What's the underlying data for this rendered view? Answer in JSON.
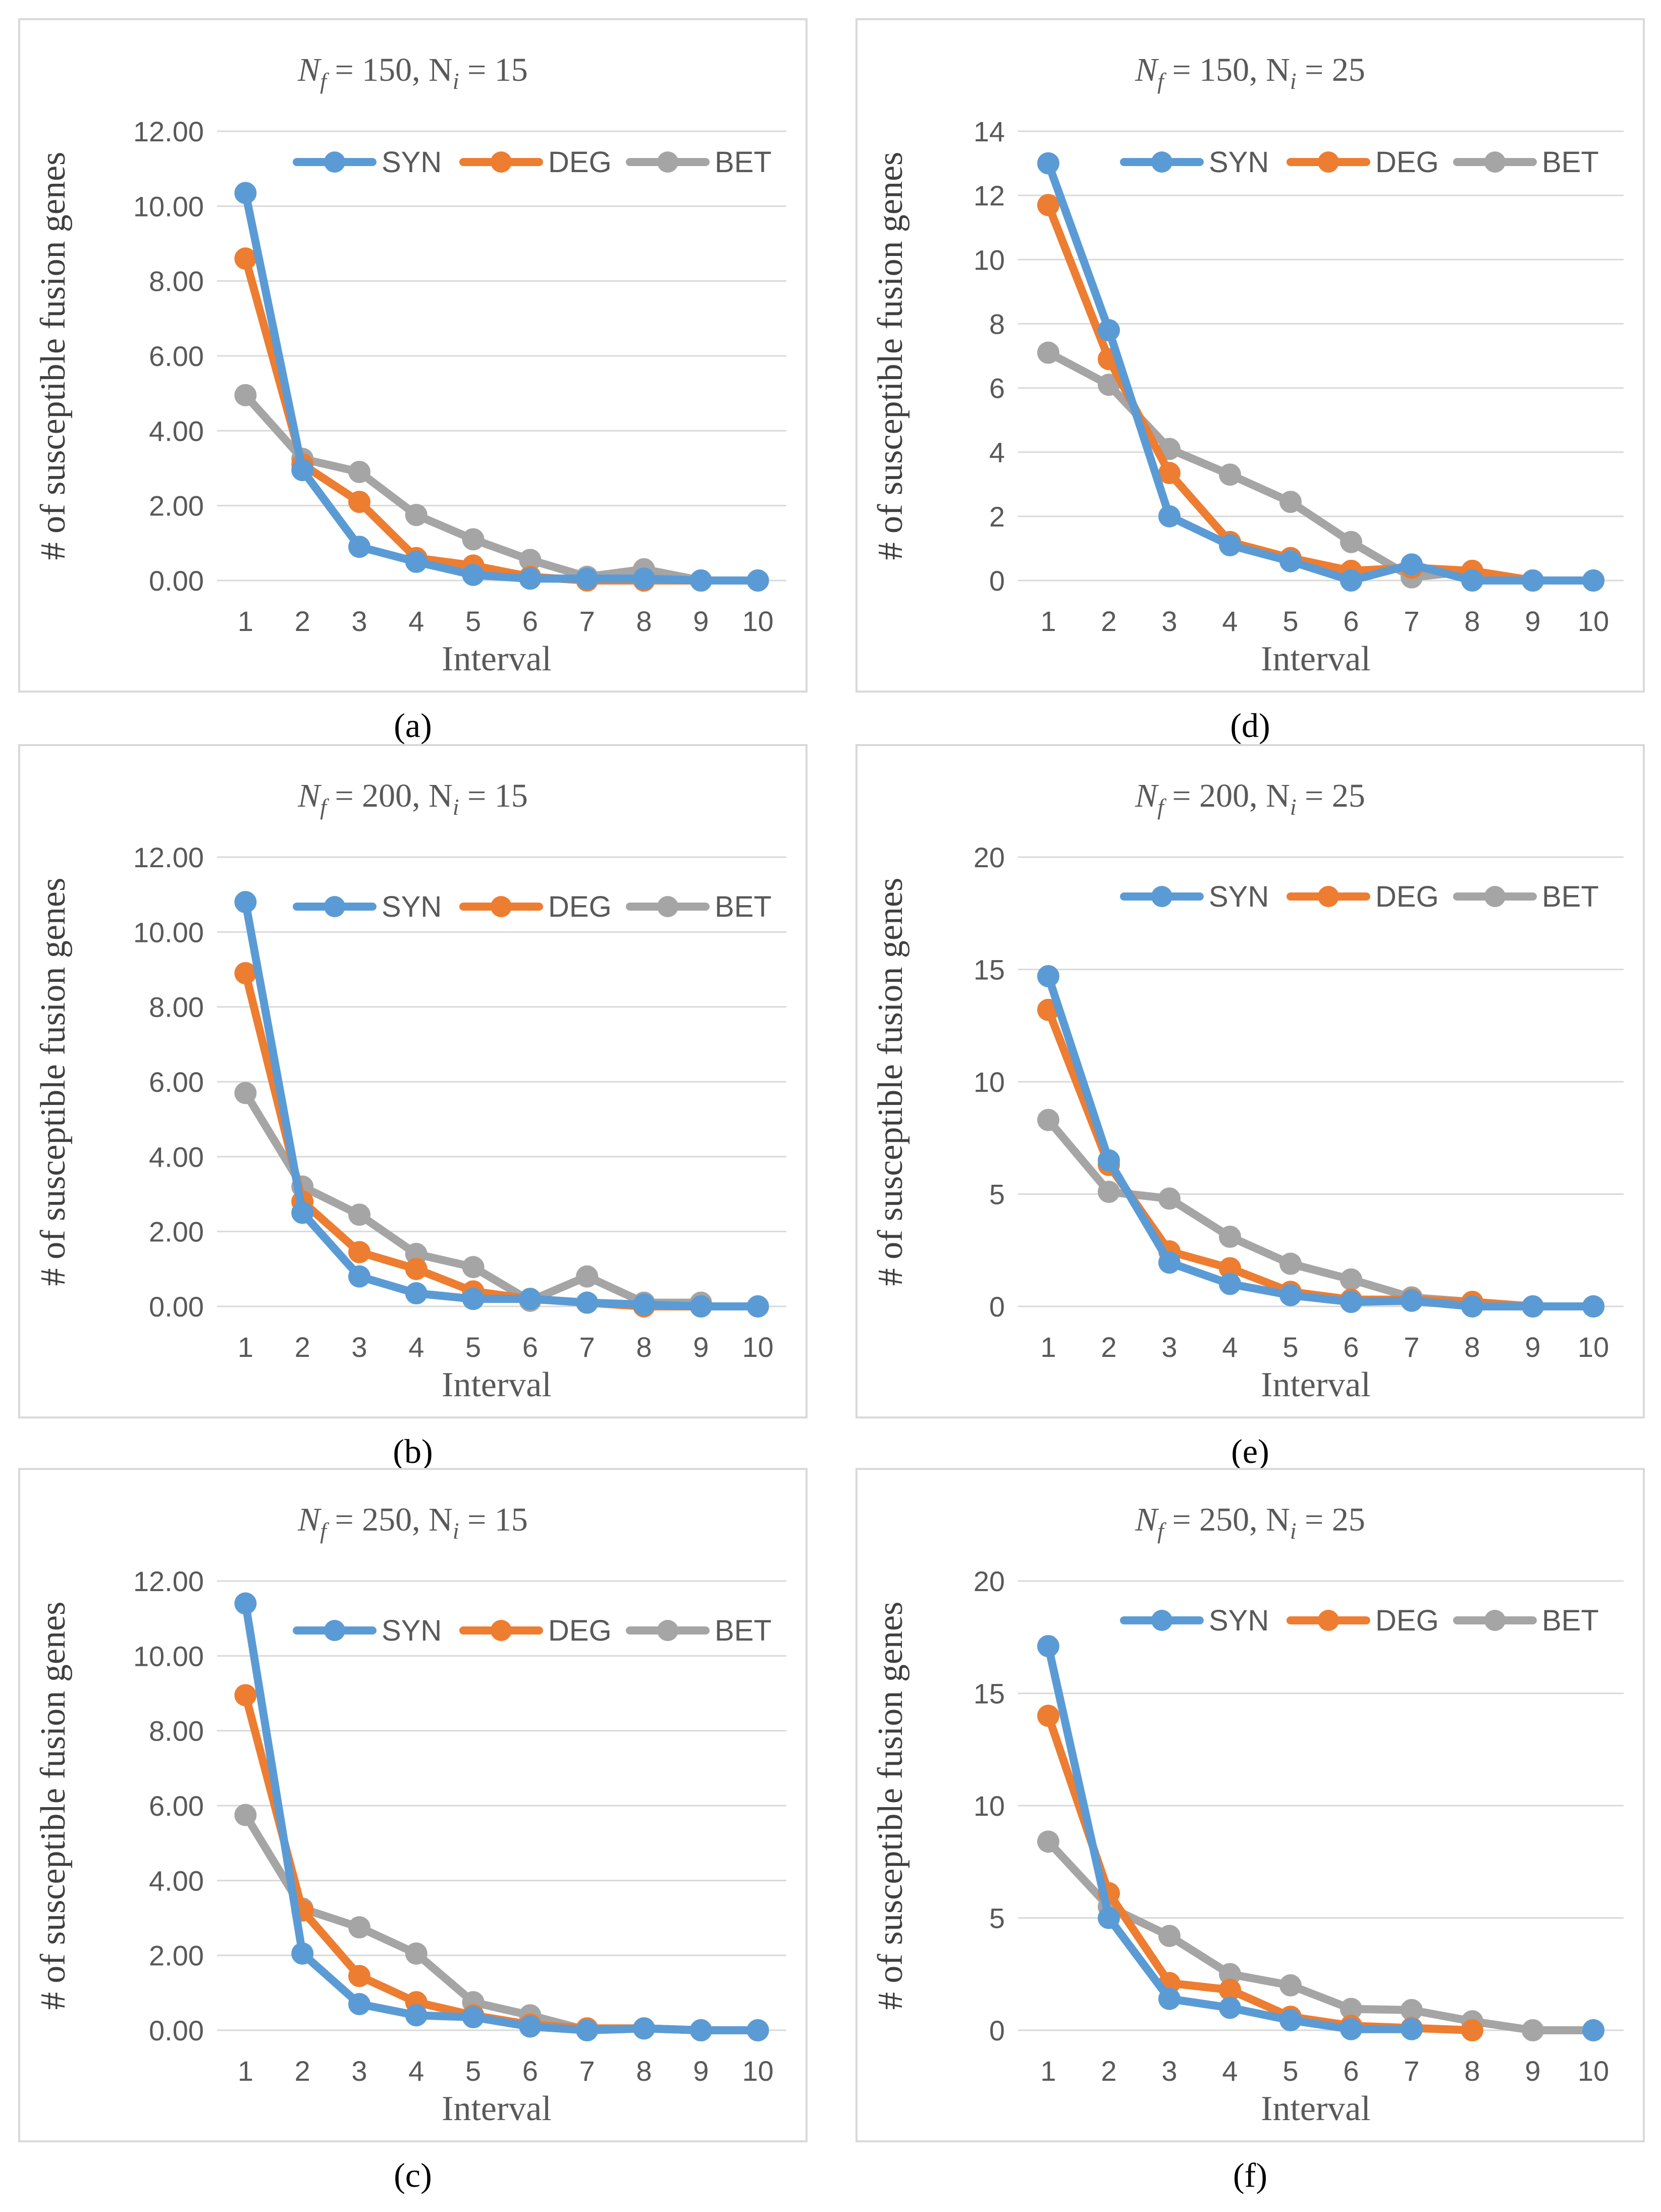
{
  "colors": {
    "SYN": "#5B9BD5",
    "DEG": "#ED7D31",
    "BET": "#A5A5A5",
    "grid": "#D9D9D9",
    "frame": "#D9D9D9",
    "axis_text": "#595959",
    "title_text": "#595959"
  },
  "chart_data": [
    {
      "panel": "a",
      "caption": "(a)",
      "type": "line",
      "title_main": "N",
      "title_sub": "f",
      "title_mid": " = 150, N",
      "title_sub2": "i",
      "title_end": " = 15",
      "xlabel": "Interval",
      "ylabel": "# of susceptible fusion genes",
      "x": [
        "1",
        "2",
        "3",
        "4",
        "5",
        "6",
        "7",
        "8",
        "9",
        "10"
      ],
      "ylim": [
        0,
        12
      ],
      "yticks": [
        "0.00",
        "2.00",
        "4.00",
        "6.00",
        "8.00",
        "10.00",
        "12.00"
      ],
      "ytick_values": [
        0,
        2,
        4,
        6,
        8,
        10,
        12
      ],
      "legend": [
        "SYN",
        "DEG",
        "BET"
      ],
      "series": [
        {
          "name": "SYN",
          "values": [
            10.35,
            2.95,
            0.9,
            0.5,
            0.15,
            0.05,
            0.05,
            0.05,
            0,
            0
          ]
        },
        {
          "name": "DEG",
          "values": [
            8.6,
            3.1,
            2.1,
            0.6,
            0.4,
            0.1,
            0.0,
            0.0,
            0,
            0
          ]
        },
        {
          "name": "BET",
          "values": [
            4.95,
            3.25,
            2.9,
            1.75,
            1.1,
            0.55,
            0.1,
            0.3,
            0,
            0
          ]
        }
      ]
    },
    {
      "panel": "d",
      "caption": "(d)",
      "type": "line",
      "title_main": "N",
      "title_sub": "f",
      "title_mid": " = 150, N",
      "title_sub2": "i",
      "title_end": " = 25",
      "xlabel": "Interval",
      "ylabel": "# of susceptible fusion genes",
      "x": [
        "1",
        "2",
        "3",
        "4",
        "5",
        "6",
        "7",
        "8",
        "9",
        "10"
      ],
      "ylim": [
        0,
        14
      ],
      "yticks": [
        "0",
        "2",
        "4",
        "6",
        "8",
        "10",
        "12",
        "14"
      ],
      "ytick_values": [
        0,
        2,
        4,
        6,
        8,
        10,
        12,
        14
      ],
      "legend": [
        "SYN",
        "DEG",
        "BET"
      ],
      "series": [
        {
          "name": "SYN",
          "values": [
            13.0,
            7.8,
            2.0,
            1.1,
            0.6,
            0.0,
            0.5,
            0.0,
            0,
            0
          ]
        },
        {
          "name": "DEG",
          "values": [
            11.7,
            6.9,
            3.35,
            1.2,
            0.7,
            0.3,
            0.4,
            0.3,
            0,
            0
          ]
        },
        {
          "name": "BET",
          "values": [
            7.1,
            6.1,
            4.1,
            3.3,
            2.45,
            1.2,
            0.1,
            0.3,
            0,
            0
          ]
        }
      ]
    },
    {
      "panel": "b",
      "caption": "(b)",
      "type": "line",
      "title_main": "N",
      "title_sub": "f",
      "title_mid": " = 200, N",
      "title_sub2": "i",
      "title_end": " = 15",
      "xlabel": "Interval",
      "ylabel": "# of susceptible fusion genes",
      "x": [
        "1",
        "2",
        "3",
        "4",
        "5",
        "6",
        "7",
        "8",
        "9",
        "10"
      ],
      "ylim": [
        0,
        12
      ],
      "yticks": [
        "0.00",
        "2.00",
        "4.00",
        "6.00",
        "8.00",
        "10.00",
        "12.00"
      ],
      "ytick_values": [
        0,
        2,
        4,
        6,
        8,
        10,
        12
      ],
      "legend": [
        "SYN",
        "DEG",
        "BET"
      ],
      "series": [
        {
          "name": "SYN",
          "values": [
            10.8,
            2.5,
            0.8,
            0.35,
            0.2,
            0.2,
            0.1,
            0.05,
            0,
            0
          ]
        },
        {
          "name": "DEG",
          "values": [
            8.9,
            2.8,
            1.45,
            1.0,
            0.4,
            0.2,
            0.1,
            0.0,
            0,
            0
          ]
        },
        {
          "name": "BET",
          "values": [
            5.7,
            3.2,
            2.45,
            1.4,
            1.05,
            0.15,
            0.8,
            0.1,
            0.1,
            null
          ]
        }
      ]
    },
    {
      "panel": "e",
      "caption": "(e)",
      "type": "line",
      "title_main": "N",
      "title_sub": "f",
      "title_mid": " = 200, N",
      "title_sub2": "i",
      "title_end": " = 25",
      "xlabel": "Interval",
      "ylabel": "# of susceptible fusion genes",
      "x": [
        "1",
        "2",
        "3",
        "4",
        "5",
        "6",
        "7",
        "8",
        "9",
        "10"
      ],
      "ylim": [
        0,
        20
      ],
      "yticks": [
        "0",
        "5",
        "10",
        "15",
        "20"
      ],
      "ytick_values": [
        0,
        5,
        10,
        15,
        20
      ],
      "legend": [
        "SYN",
        "DEG",
        "BET"
      ],
      "series": [
        {
          "name": "SYN",
          "values": [
            14.7,
            6.5,
            1.95,
            1.0,
            0.5,
            0.2,
            0.25,
            0.0,
            0,
            0
          ]
        },
        {
          "name": "DEG",
          "values": [
            13.2,
            6.3,
            2.45,
            1.7,
            0.65,
            0.3,
            0.3,
            0.2,
            0,
            0
          ]
        },
        {
          "name": "BET",
          "values": [
            8.3,
            5.1,
            4.8,
            3.1,
            1.9,
            1.2,
            0.4,
            0.2,
            0,
            0
          ]
        }
      ]
    },
    {
      "panel": "c",
      "caption": "(c)",
      "type": "line",
      "title_main": "N",
      "title_sub": "f",
      "title_mid": " = 250, N",
      "title_sub2": "i",
      "title_end": " = 15",
      "xlabel": "Interval",
      "ylabel": "# of susceptible fusion genes",
      "x": [
        "1",
        "2",
        "3",
        "4",
        "5",
        "6",
        "7",
        "8",
        "9",
        "10"
      ],
      "ylim": [
        0,
        12
      ],
      "yticks": [
        "0.00",
        "2.00",
        "4.00",
        "6.00",
        "8.00",
        "10.00",
        "12.00"
      ],
      "ytick_values": [
        0,
        2,
        4,
        6,
        8,
        10,
        12
      ],
      "legend": [
        "SYN",
        "DEG",
        "BET"
      ],
      "series": [
        {
          "name": "SYN",
          "values": [
            11.4,
            2.05,
            0.7,
            0.4,
            0.35,
            0.1,
            0.0,
            0.05,
            0,
            0
          ]
        },
        {
          "name": "DEG",
          "values": [
            8.95,
            3.2,
            1.45,
            0.75,
            0.4,
            0.15,
            0.05,
            0.05,
            0,
            0
          ]
        },
        {
          "name": "BET",
          "values": [
            5.75,
            3.25,
            2.75,
            2.05,
            0.75,
            0.4,
            0.0,
            0.05,
            0,
            0
          ]
        }
      ]
    },
    {
      "panel": "f",
      "caption": "(f)",
      "type": "line",
      "title_main": "N",
      "title_sub": "f",
      "title_mid": " = 250, N",
      "title_sub2": "i",
      "title_end": " = 25",
      "xlabel": "Interval",
      "ylabel": "# of susceptible fusion genes",
      "x": [
        "1",
        "2",
        "3",
        "4",
        "5",
        "6",
        "7",
        "8",
        "9",
        "10"
      ],
      "ylim": [
        0,
        20
      ],
      "yticks": [
        "0",
        "5",
        "10",
        "15",
        "20"
      ],
      "ytick_values": [
        0,
        5,
        10,
        15,
        20
      ],
      "legend": [
        "SYN",
        "DEG",
        "BET"
      ],
      "series": [
        {
          "name": "SYN",
          "values": [
            17.1,
            5.0,
            1.4,
            1.0,
            0.45,
            0.05,
            0.05,
            null,
            null,
            0
          ]
        },
        {
          "name": "DEG",
          "values": [
            14.0,
            6.1,
            2.1,
            1.8,
            0.6,
            0.2,
            0.1,
            0.0,
            null,
            null
          ]
        },
        {
          "name": "BET",
          "values": [
            8.4,
            5.5,
            4.2,
            2.5,
            2.0,
            0.95,
            0.9,
            0.4,
            0,
            0
          ]
        }
      ]
    }
  ]
}
